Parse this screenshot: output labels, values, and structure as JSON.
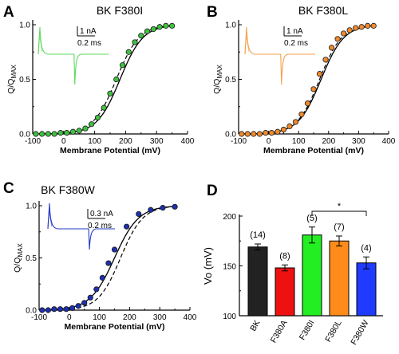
{
  "chart_data": [
    {
      "panel": "A",
      "type": "scatter",
      "title": "BK F380I",
      "xlabel": "Membrane Potential (mV)",
      "ylabel_main": "Q/Q",
      "ylabel_sub": "MAX",
      "xlim": [
        -100,
        400
      ],
      "ylim": [
        0,
        1.0
      ],
      "xticks": [
        -100,
        0,
        100,
        200,
        300,
        400
      ],
      "xtick_labels": [
        "-100",
        "0",
        "100",
        "200",
        "300",
        "400"
      ],
      "yticks": [
        0,
        0.5,
        1.0
      ],
      "ytick_labels": [
        "0.0",
        "0.5",
        "1.0"
      ],
      "marker_color": "#3fc23f",
      "trace_color": "#5ed85e",
      "scale_current": "1 nA",
      "scale_time": "0.2 ms",
      "fit_v_half": 182,
      "fit_slope": 37,
      "ref_v_half": 170,
      "ref_slope": 37,
      "x": [
        -90,
        -70,
        -50,
        -30,
        -10,
        10,
        30,
        50,
        70,
        90,
        110,
        130,
        150,
        170,
        190,
        210,
        230,
        250,
        270,
        290,
        310,
        330,
        350
      ],
      "y": [
        0.0,
        0.0,
        0.0,
        0.0,
        0.01,
        0.01,
        0.02,
        0.03,
        0.05,
        0.09,
        0.15,
        0.24,
        0.37,
        0.5,
        0.63,
        0.75,
        0.84,
        0.9,
        0.94,
        0.96,
        0.98,
        0.99,
        0.99
      ]
    },
    {
      "panel": "B",
      "type": "scatter",
      "title": "BK F380L",
      "xlabel": "Membrane Potential (mV)",
      "ylabel_main": "Q/Q",
      "ylabel_sub": "MAX",
      "xlim": [
        -100,
        400
      ],
      "ylim": [
        0,
        1.0
      ],
      "xticks": [
        -100,
        0,
        100,
        200,
        300,
        400
      ],
      "xtick_labels": [
        "-100",
        "0",
        "100",
        "200",
        "300",
        "400"
      ],
      "yticks": [
        0,
        0.5,
        1.0
      ],
      "ytick_labels": [
        "0.0",
        "0.5",
        "1.0"
      ],
      "marker_color": "#f08a2c",
      "trace_color": "#f5a04a",
      "scale_current": "1 nA",
      "scale_time": "0.2 ms",
      "fit_v_half": 175,
      "fit_slope": 38,
      "ref_v_half": 170,
      "ref_slope": 37,
      "x": [
        -90,
        -70,
        -50,
        -30,
        -10,
        10,
        30,
        50,
        70,
        90,
        110,
        130,
        150,
        170,
        190,
        210,
        230,
        250,
        270,
        290,
        310,
        330,
        350
      ],
      "y": [
        0.0,
        0.0,
        0.0,
        0.0,
        0.01,
        0.01,
        0.02,
        0.04,
        0.07,
        0.11,
        0.18,
        0.28,
        0.41,
        0.55,
        0.68,
        0.79,
        0.87,
        0.92,
        0.95,
        0.97,
        0.98,
        0.99,
        0.99
      ]
    },
    {
      "panel": "C",
      "type": "scatter",
      "title": "BK F380W",
      "xlabel": "Membrane Potential (mV)",
      "ylabel_main": "Q/Q",
      "ylabel_sub": "MAX",
      "xlim": [
        -100,
        400
      ],
      "ylim": [
        0,
        1.0
      ],
      "xticks": [
        -100,
        0,
        100,
        200,
        300,
        400
      ],
      "xtick_labels": [
        "-100",
        "0",
        "100",
        "200",
        "300",
        "400"
      ],
      "yticks": [
        0,
        0.5,
        1.0
      ],
      "ytick_labels": [
        "0.0",
        "0.5",
        "1.0"
      ],
      "marker_color": "#1e2fb0",
      "trace_color": "#2438c8",
      "scale_current": "0.3 nA",
      "scale_time": "0.2 ms",
      "fit_v_half": 150,
      "fit_slope": 40,
      "ref_v_half": 170,
      "ref_slope": 37,
      "x": [
        -90,
        -70,
        -50,
        -30,
        -10,
        10,
        30,
        50,
        70,
        90,
        110,
        130,
        150,
        190,
        230,
        270,
        310,
        350
      ],
      "y": [
        0.0,
        0.0,
        0.01,
        0.01,
        0.01,
        0.02,
        0.04,
        0.07,
        0.12,
        0.2,
        0.31,
        0.45,
        0.58,
        0.8,
        0.92,
        0.96,
        0.98,
        0.99
      ]
    },
    {
      "panel": "D",
      "type": "bar",
      "ylabel": "Vo (mV)",
      "ylim": [
        100,
        200
      ],
      "yticks": [
        100,
        150,
        200
      ],
      "ytick_labels": [
        "100",
        "150",
        "200"
      ],
      "categories": [
        "BK",
        "F380A",
        "F380I",
        "F380L",
        "F380W"
      ],
      "values": [
        169,
        148,
        181,
        175,
        153
      ],
      "errors": [
        3,
        3,
        8,
        5,
        6
      ],
      "n_labels": [
        "(14)",
        "(8)",
        "(5)",
        "(7)",
        "(4)"
      ],
      "colors": [
        "#222222",
        "#ee1111",
        "#22ee22",
        "#ff8c1a",
        "#1f3bff"
      ],
      "significance": "*"
    }
  ]
}
